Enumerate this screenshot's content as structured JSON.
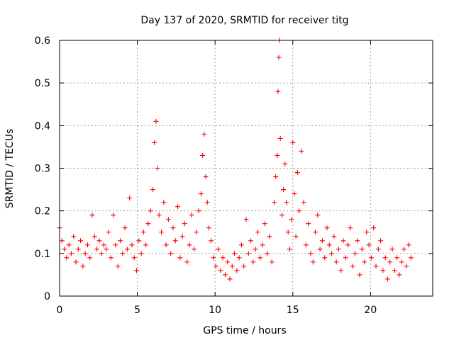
{
  "chart_data": {
    "type": "scatter",
    "title": "Day 137 of 2020, SRMTID for receiver titg",
    "xlabel": "GPS time / hours",
    "ylabel": "SRMTID / TECUs",
    "xlim": [
      0,
      24.0
    ],
    "ylim": [
      0,
      0.6
    ],
    "xticks": [
      0,
      5,
      10,
      15,
      20
    ],
    "xtick_labels": [
      "0",
      "5",
      "10",
      "15",
      "20"
    ],
    "yticks": [
      0,
      0.1,
      0.2,
      0.3,
      0.4,
      0.5,
      0.6
    ],
    "ytick_labels": [
      "0",
      "0.1",
      "0.2",
      "0.3",
      "0.4",
      "0.5",
      "0.6"
    ],
    "grid": true,
    "marker": "+",
    "color": "#ff0000",
    "series": [
      {
        "name": "SRMTID",
        "x": [
          0.0,
          0.15,
          0.3,
          0.45,
          0.6,
          0.75,
          0.9,
          1.05,
          1.2,
          1.35,
          1.5,
          1.65,
          1.8,
          1.95,
          2.1,
          2.25,
          2.4,
          2.55,
          2.7,
          2.85,
          3.0,
          3.15,
          3.3,
          3.45,
          3.6,
          3.75,
          3.9,
          4.05,
          4.2,
          4.35,
          4.5,
          4.65,
          4.8,
          4.95,
          5.1,
          5.25,
          5.4,
          5.55,
          5.7,
          5.85,
          6.0,
          6.1,
          6.2,
          6.3,
          6.4,
          6.55,
          6.7,
          6.85,
          7.0,
          7.15,
          7.3,
          7.45,
          7.6,
          7.75,
          7.9,
          8.05,
          8.2,
          8.35,
          8.5,
          8.65,
          8.8,
          8.95,
          9.1,
          9.2,
          9.3,
          9.4,
          9.5,
          9.6,
          9.75,
          9.9,
          10.05,
          10.2,
          10.35,
          10.5,
          10.65,
          10.8,
          10.95,
          11.1,
          11.25,
          11.4,
          11.55,
          11.7,
          11.85,
          12.0,
          12.15,
          12.3,
          12.45,
          12.6,
          12.75,
          12.9,
          13.05,
          13.2,
          13.35,
          13.5,
          13.65,
          13.8,
          13.9,
          14.0,
          14.05,
          14.1,
          14.15,
          14.2,
          14.3,
          14.4,
          14.5,
          14.6,
          14.7,
          14.8,
          14.9,
          15.0,
          15.1,
          15.2,
          15.3,
          15.4,
          15.55,
          15.7,
          15.85,
          16.0,
          16.15,
          16.3,
          16.45,
          16.6,
          16.75,
          16.9,
          17.05,
          17.2,
          17.35,
          17.5,
          17.65,
          17.8,
          17.95,
          18.1,
          18.25,
          18.4,
          18.55,
          18.7,
          18.85,
          19.0,
          19.15,
          19.3,
          19.45,
          19.6,
          19.75,
          19.9,
          20.05,
          20.2,
          20.35,
          20.5,
          20.65,
          20.8,
          20.95,
          21.1,
          21.25,
          21.4,
          21.55,
          21.7,
          21.85,
          22.0,
          22.15,
          22.3,
          22.45,
          22.6
        ],
        "y": [
          0.16,
          0.13,
          0.11,
          0.09,
          0.12,
          0.1,
          0.14,
          0.08,
          0.11,
          0.13,
          0.07,
          0.1,
          0.12,
          0.09,
          0.19,
          0.14,
          0.11,
          0.13,
          0.1,
          0.12,
          0.11,
          0.15,
          0.09,
          0.19,
          0.12,
          0.07,
          0.13,
          0.1,
          0.16,
          0.11,
          0.23,
          0.12,
          0.09,
          0.06,
          0.13,
          0.1,
          0.15,
          0.12,
          0.17,
          0.2,
          0.25,
          0.36,
          0.41,
          0.3,
          0.19,
          0.15,
          0.22,
          0.12,
          0.18,
          0.1,
          0.16,
          0.13,
          0.21,
          0.09,
          0.14,
          0.17,
          0.08,
          0.12,
          0.19,
          0.11,
          0.15,
          0.2,
          0.24,
          0.33,
          0.38,
          0.28,
          0.22,
          0.16,
          0.13,
          0.09,
          0.07,
          0.11,
          0.06,
          0.09,
          0.05,
          0.08,
          0.04,
          0.07,
          0.1,
          0.06,
          0.09,
          0.12,
          0.07,
          0.18,
          0.1,
          0.13,
          0.08,
          0.11,
          0.15,
          0.09,
          0.12,
          0.17,
          0.1,
          0.14,
          0.08,
          0.22,
          0.28,
          0.33,
          0.48,
          0.56,
          0.6,
          0.37,
          0.19,
          0.25,
          0.31,
          0.22,
          0.15,
          0.11,
          0.18,
          0.36,
          0.24,
          0.14,
          0.29,
          0.2,
          0.34,
          0.22,
          0.12,
          0.17,
          0.1,
          0.08,
          0.15,
          0.19,
          0.11,
          0.13,
          0.09,
          0.16,
          0.12,
          0.1,
          0.14,
          0.08,
          0.11,
          0.06,
          0.13,
          0.09,
          0.12,
          0.16,
          0.07,
          0.1,
          0.13,
          0.05,
          0.11,
          0.08,
          0.15,
          0.12,
          0.09,
          0.16,
          0.07,
          0.11,
          0.13,
          0.06,
          0.09,
          0.04,
          0.08,
          0.11,
          0.06,
          0.09,
          0.05,
          0.08,
          0.11,
          0.07,
          0.12,
          0.09
        ]
      }
    ]
  }
}
